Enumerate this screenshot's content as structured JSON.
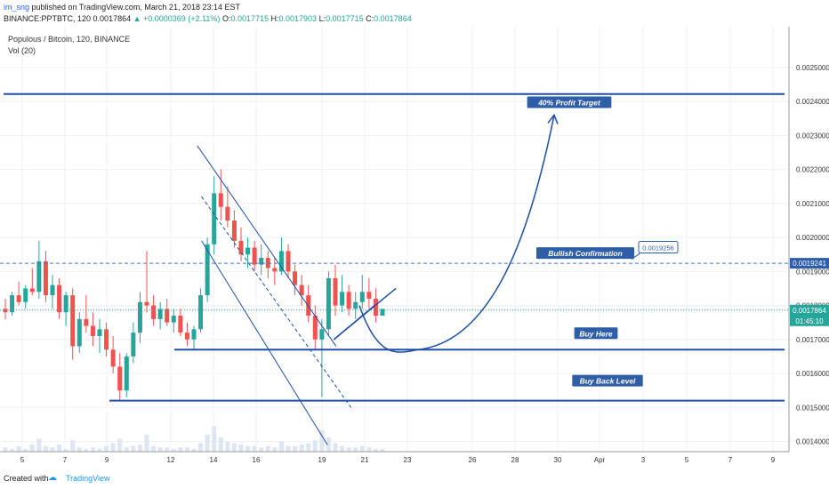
{
  "header": {
    "user": "im_sng",
    "published": " published on TradingView.com, March 21, 2018 23:14 EST",
    "symbol": "BINANCE:PPTBTC, 120",
    "last": "0.0017864",
    "change": "▲ +0.0000369 (+2.11%)",
    "o_label": "O:",
    "o": "0.0017715",
    "h_label": "H:",
    "h": "0.0017903",
    "l_label": "L:",
    "l": "0.0017715",
    "c_label": "C:",
    "c": "0.0017864"
  },
  "pane": {
    "title": "Populous / Bitcoin, 120, BINANCE",
    "vol_label": "Vol (20)"
  },
  "footer": {
    "created_with": "Created with",
    "brand": "TradingView",
    "logo_icon": "tradingview-logo-icon"
  },
  "colors": {
    "up": "#26a69a",
    "down": "#ef5350",
    "drawing": "#1f4fa8",
    "current_price_label": "#26a69a",
    "level_label": "#2e5ea8"
  },
  "chart_data": {
    "type": "candlestick",
    "x_ticks": [
      "5",
      "7",
      "9",
      "12",
      "14",
      "16",
      "19",
      "21",
      "23",
      "26",
      "28",
      "30",
      "Apr",
      "3",
      "5",
      "7",
      "9"
    ],
    "y_ticks": [
      "0.0025000",
      "0.0024000",
      "0.0023000",
      "0.0022000",
      "0.0021000",
      "0.0020000",
      "0.0019000",
      "0.0018000",
      "0.0017000",
      "0.0016000",
      "0.0015000",
      "0.0014000"
    ],
    "ylim": [
      0.00137,
      0.00262
    ],
    "current_price": "0.0017864",
    "countdown": "01:45:10",
    "price_tag_level": "0.0019241",
    "callout_value": "0.0019256",
    "annotations": [
      {
        "text": "40% Profit Target",
        "level": 0.00242
      },
      {
        "text": "Bullish Confirmation",
        "level": 0.0019241
      },
      {
        "text": "Buy Here",
        "level": 0.00167
      },
      {
        "text": "Buy Back Level",
        "level": 0.00152
      }
    ],
    "candles": [
      [
        0.00179,
        0.00182,
        0.00176,
        0.00178
      ],
      [
        0.00178,
        0.00184,
        0.00177,
        0.00183
      ],
      [
        0.00183,
        0.00187,
        0.0018,
        0.00181
      ],
      [
        0.00181,
        0.00186,
        0.00179,
        0.00185
      ],
      [
        0.00185,
        0.00191,
        0.00183,
        0.00184
      ],
      [
        0.00184,
        0.00199,
        0.00182,
        0.00193
      ],
      [
        0.00193,
        0.00196,
        0.00181,
        0.00183
      ],
      [
        0.00183,
        0.00189,
        0.00179,
        0.00186
      ],
      [
        0.00186,
        0.00188,
        0.00176,
        0.00178
      ],
      [
        0.00178,
        0.00184,
        0.00174,
        0.00183
      ],
      [
        0.00183,
        0.00185,
        0.00164,
        0.00168
      ],
      [
        0.00168,
        0.00178,
        0.00166,
        0.00176
      ],
      [
        0.00176,
        0.00183,
        0.00172,
        0.00174
      ],
      [
        0.00174,
        0.00178,
        0.00168,
        0.00171
      ],
      [
        0.00171,
        0.00176,
        0.00166,
        0.00173
      ],
      [
        0.00173,
        0.00175,
        0.00165,
        0.00167
      ],
      [
        0.00167,
        0.00171,
        0.0016,
        0.00162
      ],
      [
        0.00162,
        0.00166,
        0.00152,
        0.00155
      ],
      [
        0.00155,
        0.00166,
        0.00153,
        0.00165
      ],
      [
        0.00165,
        0.00175,
        0.00163,
        0.00172
      ],
      [
        0.00172,
        0.00184,
        0.00169,
        0.00181
      ],
      [
        0.00181,
        0.00196,
        0.00178,
        0.0018
      ],
      [
        0.0018,
        0.00183,
        0.00174,
        0.00176
      ],
      [
        0.00176,
        0.00181,
        0.00173,
        0.00179
      ],
      [
        0.00179,
        0.00182,
        0.00174,
        0.00175
      ],
      [
        0.00175,
        0.00179,
        0.00172,
        0.00177
      ],
      [
        0.00177,
        0.00179,
        0.00171,
        0.00172
      ],
      [
        0.00172,
        0.00175,
        0.00168,
        0.0017
      ],
      [
        0.0017,
        0.00174,
        0.00167,
        0.00173
      ],
      [
        0.00173,
        0.00185,
        0.00172,
        0.00183
      ],
      [
        0.00183,
        0.002,
        0.00181,
        0.00198
      ],
      [
        0.00198,
        0.00218,
        0.00195,
        0.00213
      ],
      [
        0.00213,
        0.0022,
        0.00205,
        0.00209
      ],
      [
        0.00209,
        0.00215,
        0.00203,
        0.00205
      ],
      [
        0.00205,
        0.00208,
        0.00197,
        0.00199
      ],
      [
        0.00199,
        0.00203,
        0.00193,
        0.00195
      ],
      [
        0.00195,
        0.002,
        0.00191,
        0.00197
      ],
      [
        0.00197,
        0.00199,
        0.0019,
        0.00192
      ],
      [
        0.00192,
        0.00198,
        0.00189,
        0.00194
      ],
      [
        0.00194,
        0.00196,
        0.00188,
        0.00191
      ],
      [
        0.00191,
        0.00194,
        0.00186,
        0.0019
      ],
      [
        0.0019,
        0.002,
        0.00189,
        0.00196
      ],
      [
        0.00196,
        0.00198,
        0.00188,
        0.0019
      ],
      [
        0.0019,
        0.00192,
        0.00183,
        0.00186
      ],
      [
        0.00186,
        0.00189,
        0.0018,
        0.00183
      ],
      [
        0.00183,
        0.00186,
        0.00175,
        0.00177
      ],
      [
        0.00177,
        0.0018,
        0.00167,
        0.0017
      ],
      [
        0.0017,
        0.00176,
        0.00153,
        0.00173
      ],
      [
        0.00173,
        0.0019,
        0.00171,
        0.00188
      ],
      [
        0.00188,
        0.00192,
        0.00177,
        0.0018
      ],
      [
        0.0018,
        0.00189,
        0.00178,
        0.00184
      ],
      [
        0.00184,
        0.00186,
        0.00177,
        0.00179
      ],
      [
        0.00179,
        0.00184,
        0.00176,
        0.00181
      ],
      [
        0.00181,
        0.00189,
        0.00179,
        0.00184
      ],
      [
        0.00184,
        0.00188,
        0.00179,
        0.00182
      ],
      [
        0.00182,
        0.00185,
        0.00175,
        0.00177
      ],
      [
        0.00177,
        0.00179,
        0.00177,
        0.00179
      ]
    ],
    "volume": [
      3,
      2,
      4,
      2,
      5,
      9,
      4,
      3,
      5,
      2,
      8,
      3,
      2,
      3,
      2,
      4,
      6,
      9,
      3,
      4,
      5,
      12,
      4,
      3,
      3,
      2,
      3,
      3,
      2,
      6,
      12,
      18,
      10,
      7,
      6,
      5,
      4,
      4,
      3,
      4,
      3,
      7,
      4,
      4,
      5,
      6,
      8,
      15,
      10,
      6,
      4,
      3,
      3,
      4,
      3,
      2,
      2
    ],
    "drawings": {
      "channel_top": [
        [
          0.00227,
          13.2
        ],
        [
          0.00168,
          19.7
        ]
      ],
      "channel_bottom": [
        [
          0.00199,
          13.4
        ],
        [
          0.00139,
          19.3
        ]
      ],
      "channel_mid": [
        [
          0.00212,
          13.4
        ],
        [
          0.0015,
          20.4
        ]
      ],
      "wedge_up": [
        [
          0.0017,
          19.6
        ],
        [
          0.00185,
          22.5
        ]
      ],
      "wedge_down": [
        [
          0.0017,
          19.6
        ],
        [
          0.0018,
          21.5
        ]
      ],
      "buy_here_level": 0.00167,
      "buy_back_level": 0.00152,
      "profit_level": 0.002422,
      "bullish_level": 0.0019241
    }
  }
}
